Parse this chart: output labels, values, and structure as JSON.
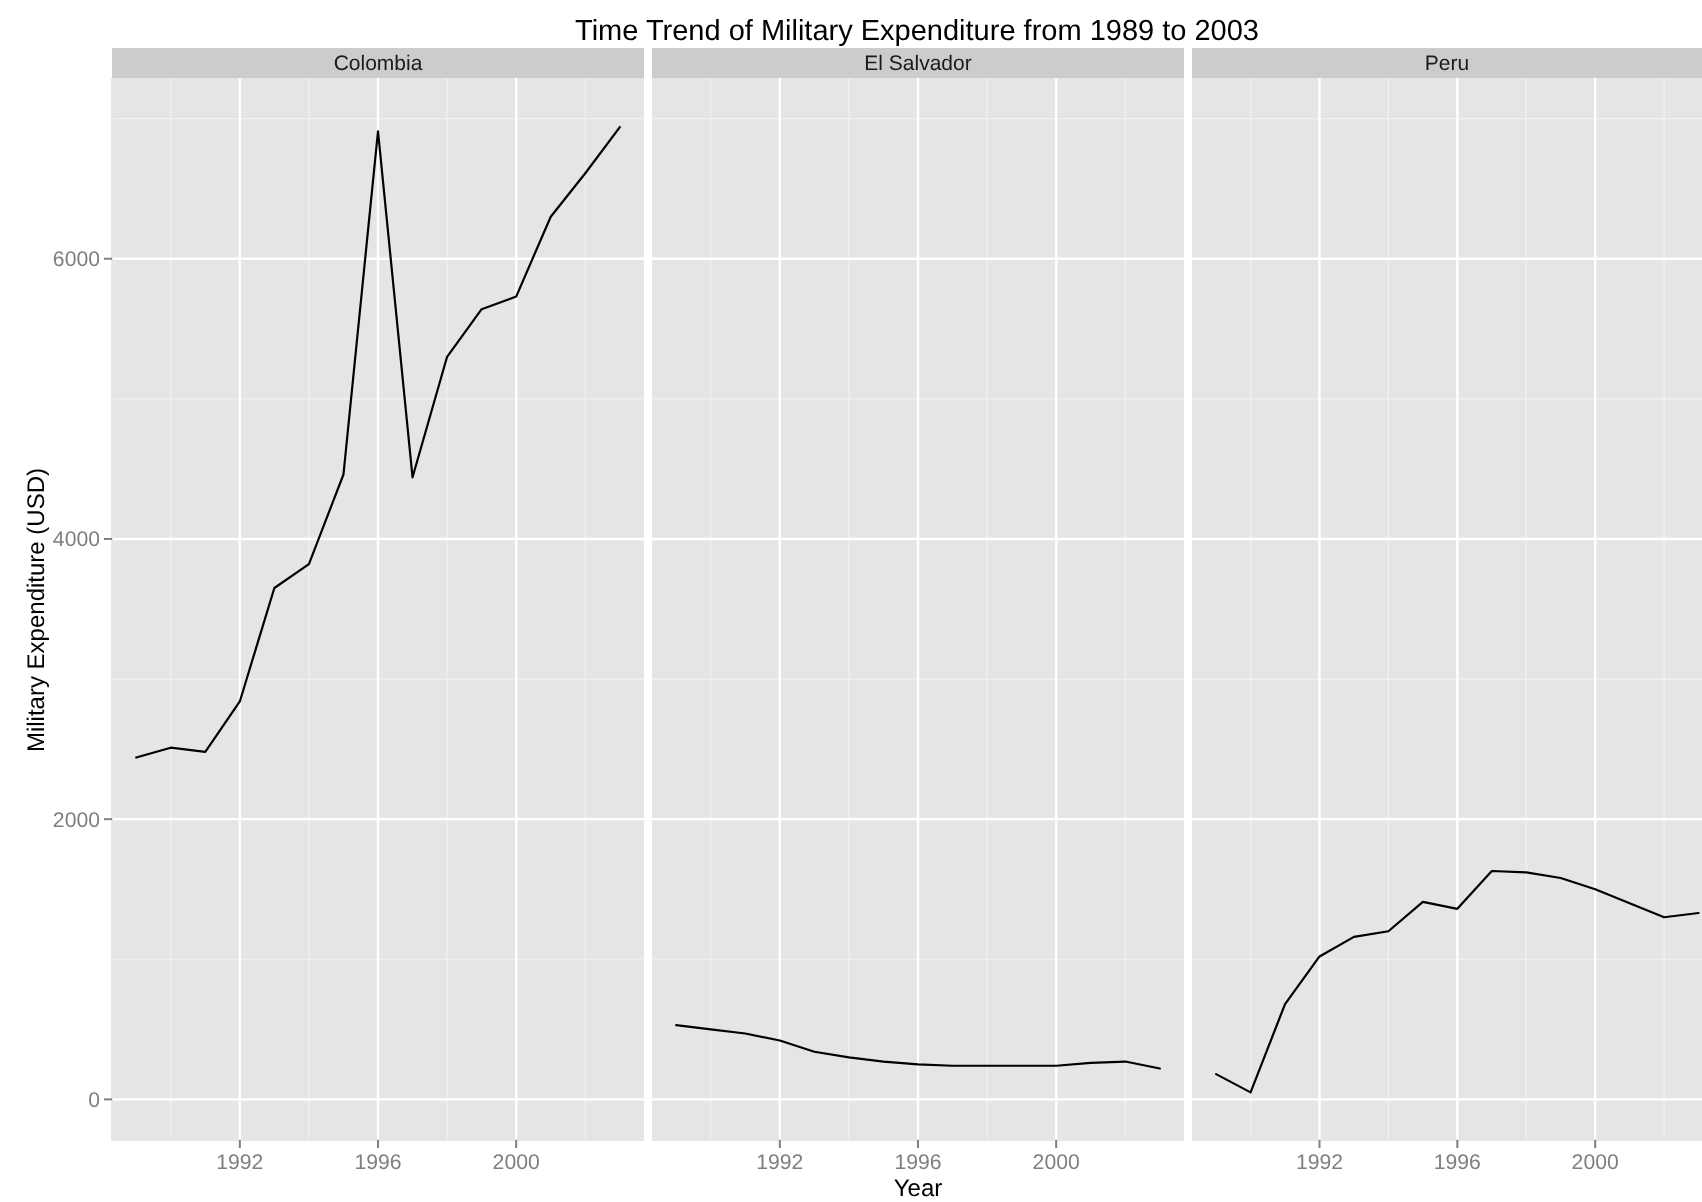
{
  "chart_data": [
    {
      "type": "line",
      "subtitle": "Colombia",
      "ylabel": "Military Expenditure (USD)",
      "x": [
        1989,
        1990,
        1991,
        1992,
        1993,
        1994,
        1995,
        1996,
        1997,
        1998,
        1999,
        2000,
        2001,
        2002,
        2003
      ],
      "values": [
        2440,
        2510,
        2480,
        2840,
        3650,
        3820,
        4460,
        6910,
        4440,
        5300,
        5640,
        5730,
        6300,
        6610,
        6940
      ],
      "color": "#000000",
      "xlim": [
        1988.3,
        2003.7
      ],
      "xticks": [
        1992,
        1996,
        2000
      ],
      "ylim": [
        -290,
        7290
      ],
      "yticks": [
        0,
        2000,
        4000,
        6000
      ],
      "grid": true
    },
    {
      "type": "line",
      "title": "Time Trend of Military Expenditure from 1989 to 2003",
      "subtitle": "El Salvador",
      "xlabel": "Year",
      "x": [
        1989,
        1990,
        1991,
        1992,
        1993,
        1994,
        1995,
        1996,
        1997,
        1998,
        1999,
        2000,
        2001,
        2002,
        2003
      ],
      "values": [
        530,
        500,
        470,
        420,
        340,
        300,
        270,
        250,
        240,
        240,
        240,
        240,
        260,
        270,
        220
      ],
      "color": "#000000",
      "xlim": [
        1988.3,
        2003.7
      ],
      "xticks": [
        1992,
        1996,
        2000
      ],
      "ylim": [
        -290,
        7290
      ],
      "yticks": [
        0,
        2000,
        4000,
        6000
      ],
      "grid": true,
      "tick_labels": "x"
    },
    {
      "type": "line",
      "subtitle": "Peru",
      "x": [
        1989,
        1990,
        1991,
        1992,
        1993,
        1994,
        1995,
        1996,
        1997,
        1998,
        1999,
        2000,
        2001,
        2002,
        2003
      ],
      "values": [
        180,
        50,
        680,
        1020,
        1160,
        1200,
        1410,
        1360,
        1630,
        1620,
        1580,
        1500,
        1400,
        1300,
        1330
      ],
      "color": "#000000",
      "xlim": [
        1988.3,
        2003.1
      ],
      "xticks": [
        1992,
        1996,
        2000
      ],
      "ylim": [
        -290,
        7290
      ],
      "yticks": [
        0,
        2000,
        4000,
        6000
      ],
      "grid": true,
      "tick_labels": "x"
    }
  ]
}
